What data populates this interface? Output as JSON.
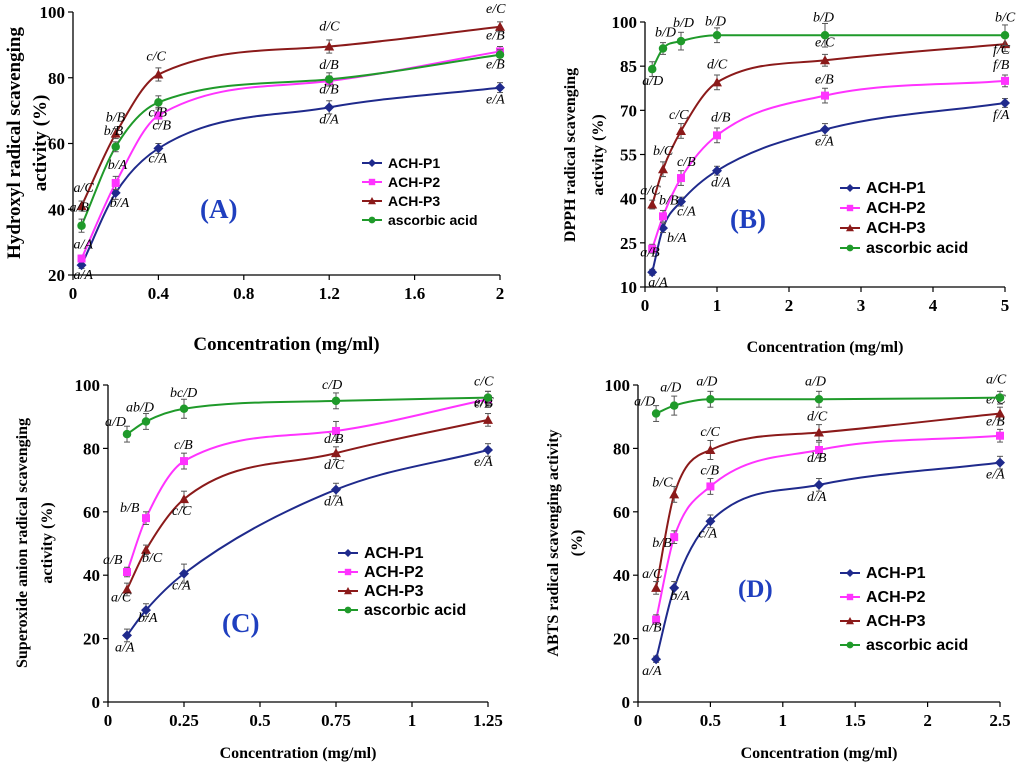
{
  "colors": {
    "ACH-P1": "#1f2a8c",
    "ACH-P2": "#ff33ff",
    "ACH-P3": "#8b1a1a",
    "ascorbic acid": "#1f9a2a"
  },
  "chart_data": [
    {
      "type": "line",
      "panel_label": "(A)",
      "xlabel": "Concentration (mg/ml)",
      "ylabel_lines": [
        "Hydroxyl radical scavenging",
        "activity (%)"
      ],
      "xlim": [
        0,
        2
      ],
      "ylim": [
        20,
        100
      ],
      "xticks": [
        0,
        0.4,
        0.8,
        1.2,
        1.6,
        2
      ],
      "xtick_labels": [
        "0",
        "0.4",
        "0.8",
        "1.2",
        "1.6",
        "2"
      ],
      "yticks": [
        20,
        40,
        60,
        80,
        100
      ],
      "ytick_labels": [
        "20",
        "40",
        "60",
        "80",
        "100"
      ],
      "x": [
        0.04,
        0.2,
        0.4,
        1.2,
        2.0
      ],
      "legend": "right-middle",
      "series": [
        {
          "name": "ACH-P1",
          "marker": "diamond",
          "values": [
            23,
            45,
            58.5,
            71,
            77
          ],
          "errors": [
            1,
            2,
            1.5,
            2,
            1.5
          ],
          "annotations": [
            "a/A",
            "b/A",
            "c/A",
            "d/A",
            "e/A"
          ]
        },
        {
          "name": "ACH-P2",
          "marker": "square",
          "values": [
            25,
            48,
            68.5,
            79,
            88
          ],
          "errors": [
            1,
            2,
            2.5,
            1.5,
            1.5
          ],
          "annotations": [
            "a/A",
            "b/A",
            "c/B",
            "d/B",
            "e/B"
          ]
        },
        {
          "name": "ACH-P3",
          "marker": "triangle",
          "values": [
            41,
            63,
            81,
            89.5,
            95.5
          ],
          "errors": [
            1.5,
            1.5,
            2,
            2,
            1.5
          ],
          "annotations": [
            "a/C",
            "b/B",
            "c/C",
            "d/C",
            "e/C"
          ]
        },
        {
          "name": "ascorbic acid",
          "marker": "circle",
          "values": [
            35,
            59,
            72.5,
            79.5,
            87
          ],
          "errors": [
            2,
            1.5,
            2,
            2,
            1.5
          ],
          "annotations": [
            "a/B",
            "b/B",
            "c/B",
            "d/B",
            "e/B"
          ]
        }
      ]
    },
    {
      "type": "line",
      "panel_label": "(B)",
      "xlabel": "Concentration (mg/ml)",
      "ylabel_lines": [
        "DPPH radical scavenging",
        "activity (%)"
      ],
      "xlim": [
        0,
        5
      ],
      "ylim": [
        10,
        100
      ],
      "xticks": [
        0,
        1,
        2,
        3,
        4,
        5
      ],
      "xtick_labels": [
        "0",
        "1",
        "2",
        "3",
        "4",
        "5"
      ],
      "yticks": [
        10,
        25,
        40,
        55,
        70,
        85,
        100
      ],
      "ytick_labels": [
        "10",
        "25",
        "40",
        "55",
        "70",
        "85",
        "100"
      ],
      "x": [
        0.1,
        0.25,
        0.5,
        1.0,
        2.5,
        5.0
      ],
      "legend": "bottom-right",
      "series": [
        {
          "name": "ACH-P1",
          "marker": "diamond",
          "values": [
            15,
            30,
            39,
            49.5,
            63.5,
            72.5
          ],
          "errors": [
            1,
            1.5,
            1.5,
            1.5,
            2,
            1.5
          ],
          "annotations": [
            "a/A",
            "b/A",
            "c/A",
            "d/A",
            "e/A",
            "f/A"
          ]
        },
        {
          "name": "ACH-P2",
          "marker": "square",
          "values": [
            23,
            34,
            47,
            61.5,
            75,
            80
          ],
          "errors": [
            1.5,
            2,
            2.5,
            2.5,
            2.5,
            2
          ],
          "annotations": [
            "a/B",
            "b/B",
            "c/B",
            "d/B",
            "e/B",
            "f/B"
          ]
        },
        {
          "name": "ACH-P3",
          "marker": "triangle",
          "values": [
            38,
            50,
            63,
            79.5,
            87,
            92.5
          ],
          "errors": [
            1.5,
            2.5,
            2.5,
            2.5,
            2,
            2.5
          ],
          "annotations": [
            "a/C",
            "b/C",
            "c/C",
            "d/C",
            "e/C",
            "f/C"
          ]
        },
        {
          "name": "ascorbic acid",
          "marker": "circle",
          "values": [
            84,
            91,
            93.5,
            95.5,
            95.5,
            95.5
          ],
          "errors": [
            2.5,
            2,
            3,
            2.5,
            4,
            3.5
          ],
          "annotations": [
            "a/D",
            "b/D",
            "b/D",
            "b/D",
            "b/D",
            "b/C"
          ]
        }
      ]
    },
    {
      "type": "line",
      "panel_label": "(C)",
      "xlabel": "Concentration (mg/ml)",
      "ylabel_lines": [
        "Superoxide anion radical scavenging",
        "activity (%)"
      ],
      "xlim": [
        0,
        1.25
      ],
      "ylim": [
        0,
        100
      ],
      "xticks": [
        0,
        0.25,
        0.5,
        0.75,
        1,
        1.25
      ],
      "xtick_labels": [
        "0",
        "0.25",
        "0.5",
        "0.75",
        "1",
        "1.25"
      ],
      "yticks": [
        0,
        20,
        40,
        60,
        80,
        100
      ],
      "ytick_labels": [
        "0",
        "20",
        "40",
        "60",
        "80",
        "100"
      ],
      "x": [
        0.0625,
        0.125,
        0.25,
        0.75,
        1.25
      ],
      "legend": "bottom-right",
      "series": [
        {
          "name": "ACH-P1",
          "marker": "diamond",
          "values": [
            21,
            29,
            40.5,
            67,
            79.5
          ],
          "errors": [
            2,
            2,
            3,
            2,
            2
          ],
          "annotations": [
            "a/A",
            "b/A",
            "c/A",
            "d/A",
            "e/A"
          ]
        },
        {
          "name": "ACH-P2",
          "marker": "square",
          "values": [
            41,
            58,
            76,
            85.5,
            95.5
          ],
          "errors": [
            1.5,
            2,
            2.5,
            3,
            2.5
          ],
          "annotations": [
            "a/B",
            "b/B",
            "c/B",
            "d/B",
            "e/B"
          ]
        },
        {
          "name": "ACH-P3",
          "marker": "triangle",
          "values": [
            35.5,
            48,
            64,
            78.5,
            89
          ],
          "errors": [
            2,
            1.5,
            2.5,
            2,
            2
          ],
          "annotations": [
            "a/C",
            "b/C",
            "c/C",
            "d/C",
            "e/C"
          ]
        },
        {
          "name": "ascorbic acid",
          "marker": "circle",
          "values": [
            84.5,
            88.5,
            92.5,
            95,
            96
          ],
          "errors": [
            2.5,
            2.5,
            3,
            2.5,
            2
          ],
          "annotations": [
            "a/D",
            "ab/D",
            "bc/D",
            "c/D",
            "c/C"
          ]
        }
      ]
    },
    {
      "type": "line",
      "panel_label": "(D)",
      "xlabel": "Concentration (mg/ml)",
      "ylabel_lines": [
        "ABTS radical scavenging activity",
        "(%)"
      ],
      "xlim": [
        0,
        2.5
      ],
      "ylim": [
        0,
        100
      ],
      "xticks": [
        0,
        0.5,
        1,
        1.5,
        2,
        2.5
      ],
      "xtick_labels": [
        "0",
        "0.5",
        "1",
        "1.5",
        "2",
        "2.5"
      ],
      "yticks": [
        0,
        20,
        40,
        60,
        80,
        100
      ],
      "ytick_labels": [
        "0",
        "20",
        "40",
        "60",
        "80",
        "100"
      ],
      "x": [
        0.125,
        0.25,
        0.5,
        1.25,
        2.5
      ],
      "legend": "bottom-right",
      "series": [
        {
          "name": "ACH-P1",
          "marker": "diamond",
          "values": [
            13.5,
            36,
            57,
            68.5,
            75.5
          ],
          "errors": [
            1,
            2,
            2,
            2,
            2
          ],
          "annotations": [
            "a/A",
            "b/A",
            "c/A",
            "d/A",
            "e/A"
          ]
        },
        {
          "name": "ACH-P2",
          "marker": "square",
          "values": [
            26,
            52,
            68,
            79.5,
            84
          ],
          "errors": [
            1.5,
            2,
            2.5,
            2.5,
            2
          ],
          "annotations": [
            "a/B",
            "b/B",
            "c/B",
            "d/B",
            "e/B"
          ]
        },
        {
          "name": "ACH-P3",
          "marker": "triangle",
          "values": [
            36,
            65.5,
            79.5,
            85,
            91
          ],
          "errors": [
            2,
            2.5,
            3,
            2.5,
            2
          ],
          "annotations": [
            "a/C",
            "b/C",
            "c/C",
            "d/C",
            "e/C"
          ]
        },
        {
          "name": "ascorbic acid",
          "marker": "circle",
          "values": [
            91,
            93.5,
            95.5,
            95.5,
            96
          ],
          "errors": [
            2.5,
            3,
            2.5,
            2.5,
            2
          ],
          "annotations": [
            "a/D",
            "a/D",
            "a/D",
            "a/D",
            "a/C"
          ]
        }
      ]
    }
  ]
}
